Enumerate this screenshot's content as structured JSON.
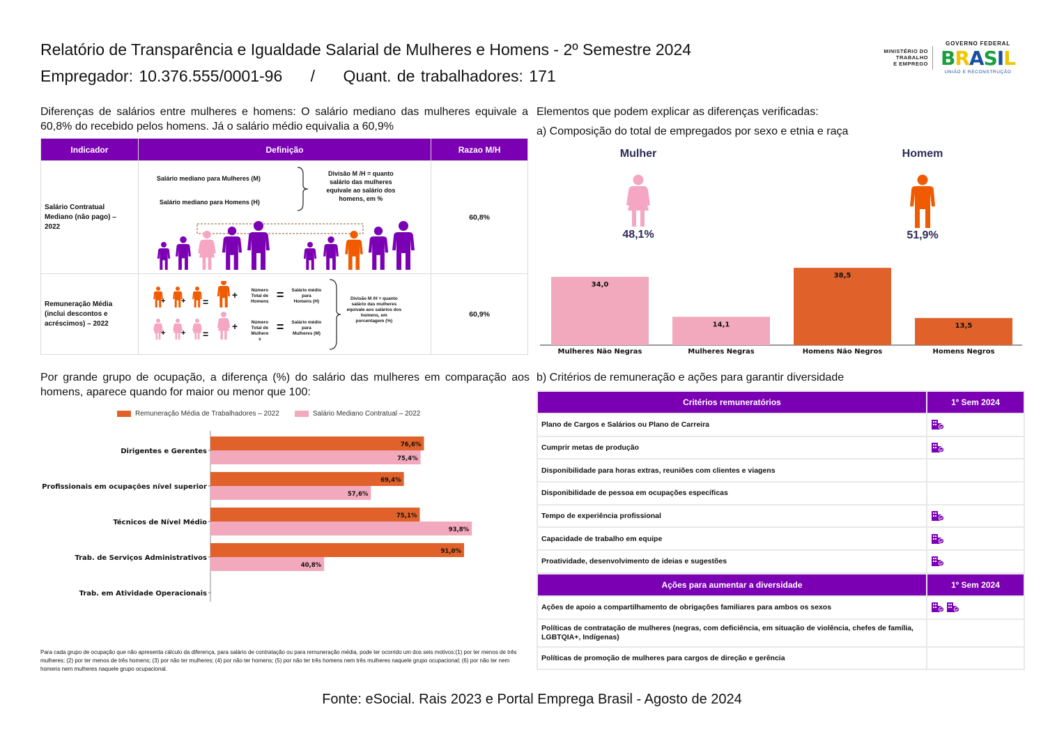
{
  "header": {
    "title": "Relatório de Transparência e Igualdade Salarial de Mulheres e Homens - 2º Semestre 2024",
    "employer_label": "Empregador: 10.376.555/0001-96",
    "separator": "/",
    "workers_label": "Quant. de trabalhadores: 171"
  },
  "logos": {
    "ministry_line1": "MINISTÉRIO DO",
    "ministry_line2": "TRABALHO",
    "ministry_line3": "E EMPREGO",
    "gov_top": "GOVERNO FEDERAL",
    "gov_word": [
      "B",
      "R",
      "A",
      "S",
      "I",
      "L"
    ],
    "gov_word_colors": [
      "#1a9e3f",
      "#f2c500",
      "#1a4fa0",
      "#1a9e3f",
      "#1a4fa0",
      "#f2c500"
    ],
    "gov_bottom": "UNIÃO E RECONSTRUÇÃO"
  },
  "section_diff": {
    "text": "Diferenças de salários entre mulheres e homens: O salário mediano das mulheres equivale a 60,8% do recebido pelos homens. Já o salário médio equivalia a 60,9%"
  },
  "indicator_table": {
    "headers": [
      "Indicador",
      "Definição",
      "Razao M/H"
    ],
    "row1": {
      "indicator_lines": [
        "Salário Contratual",
        "Mediano (não pago) –",
        "2022"
      ],
      "def_women": "Salário mediano para Mulheres (M)",
      "def_men": "Salário mediano para Homens (H)",
      "def_division": [
        "Divisão M /H = quanto",
        "salário das mulheres",
        "equivale ao salário dos",
        "homens, em %"
      ],
      "ratio": "60,8%"
    },
    "row2": {
      "indicator_lines": [
        "Remuneração Média",
        "(inclui descontos e",
        "acréscimos) – 2022"
      ],
      "plus": "+",
      "equals": "=",
      "num_men": [
        "Número",
        "Total de",
        "Homens"
      ],
      "num_women": [
        "Número",
        "Total de",
        "Mulhere",
        "s"
      ],
      "avg_men": [
        "Salário médio",
        "para",
        "Homens (H)"
      ],
      "avg_women": [
        "Salário médio",
        "para",
        "Mulheres (M)"
      ],
      "division": [
        "Divisão M /H = quanto",
        "salário das mulheres",
        "equivale aos salários dos",
        "homens, em",
        "porcentagem (%)"
      ],
      "ratio": "60,9%"
    }
  },
  "section_occupation": {
    "text": "Por grande grupo de ocupação, a diferença (%) do salário das mulheres em comparação aos homens, aparece quando for maior ou menor que 100:",
    "legend": [
      "Remuneração Média de Trabalhadores – 2022",
      "Salário Mediano Contratual – 2022"
    ]
  },
  "occupation_chart_data": {
    "type": "bar",
    "orientation": "horizontal",
    "categories": [
      "Dirigentes e Gerentes",
      "Profissionais em ocupações nível superior",
      "Técnicos de Nível Médio",
      "Trab. de Serviços Administrativos",
      "Trab. em Atividade Operacionais"
    ],
    "series": [
      {
        "name": "Remuneração Média de Trabalhadores – 2022",
        "values": [
          76.6,
          69.4,
          75.1,
          91.0,
          null
        ],
        "labels": [
          "76,6%",
          "69,4%",
          "75,1%",
          "91,0%",
          ""
        ],
        "color": "#e0612a"
      },
      {
        "name": "Salário Mediano Contratual – 2022",
        "values": [
          75.4,
          57.6,
          93.8,
          40.8,
          null
        ],
        "labels": [
          "75,4%",
          "57,6%",
          "93,8%",
          "40,8%",
          ""
        ],
        "color": "#f2a9bd"
      }
    ]
  },
  "footnote": "Para cada grupo de ocupação que não apresenta cálculo da diferença, para salário de contratação ou para remuneração média, pode ter ocorrido um dos seis motivos:(1) por ter menos de três mulheres; (2) por ter menos de três homens; (3) por não ter mulheres; (4) por não ter homens; (5) por não ter três homens nem três mulheres naquele grupo ocupacional; (6) por não ter nem homens nem mulheres naquele grupo ocupacional.",
  "section_elements": {
    "text": "Elementos que podem explicar as diferenças verificadas:",
    "subtitle_a": "a) Composição do total de empregados por sexo e etnia e raça",
    "woman_label": "Mulher",
    "woman_pct": "48,1%",
    "man_label": "Homem",
    "man_pct": "51,9%"
  },
  "chart_data": {
    "type": "bar",
    "categories": [
      "Mulheres Não Negras",
      "Mulheres Negras",
      "Homens Não Negros",
      "Homens Negros"
    ],
    "values": [
      34.0,
      14.1,
      38.5,
      13.5
    ],
    "labels": [
      "34,0",
      "14,1",
      "38,5",
      "13,5"
    ],
    "colors": [
      "#f2a9bd",
      "#f2a9bd",
      "#e0612a",
      "#e0612a"
    ],
    "ylim": [
      0,
      45
    ]
  },
  "section_criteria": {
    "text": "b) Critérios de remuneração e ações para garantir diversidade",
    "criteria_headers": [
      "Critérios remuneratórios",
      "1º Sem 2024"
    ],
    "criteria_rows": [
      {
        "label": "Plano de Cargos e Salários ou Plano de Carreira",
        "icons": 1
      },
      {
        "label": "Cumprir metas de produção",
        "icons": 1
      },
      {
        "label": "Disponibilidade para horas extras, reuniões com clientes e viagens",
        "icons": 0
      },
      {
        "label": "Disponibilidade de pessoa em ocupações específicas",
        "icons": 0
      },
      {
        "label": "Tempo de experiência profissional",
        "icons": 1
      },
      {
        "label": "Capacidade de trabalho em equipe",
        "icons": 1
      },
      {
        "label": "Proatividade, desenvolvimento de ideias e sugestões",
        "icons": 1
      }
    ],
    "actions_headers": [
      "Ações para aumentar a diversidade",
      "1º Sem 2024"
    ],
    "actions_rows": [
      {
        "label": "Ações de apoio a compartilhamento de obrigações familiares para ambos os sexos",
        "icons": 2
      },
      {
        "label": "Políticas de contratação de mulheres (negras, com deficiência, em situação de violência, chefes de família, LGBTQIA+, Indígenas)",
        "icons": 0
      },
      {
        "label": "Políticas de promoção de mulheres para cargos de direção e gerência",
        "icons": 0
      }
    ],
    "icon_name": "company-icon",
    "icon_color": "#7b00b4"
  },
  "source": "Fonte: eSocial. Rais 2023 e Portal Emprega Brasil - Agosto de 2024",
  "colors": {
    "purple": "#7b00b4",
    "orange": "#e0612a",
    "pink": "#f2a9bd",
    "bright_orange": "#f05a00",
    "light_pink": "#f4a6c2"
  }
}
